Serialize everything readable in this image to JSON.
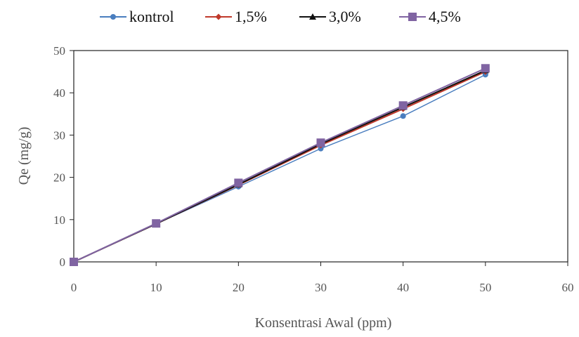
{
  "chart_data": {
    "type": "line",
    "xlabel": "Konsentrasi Awal (ppm)",
    "ylabel": "Qe (mg/g)",
    "xlim": [
      0,
      60
    ],
    "ylim": [
      0,
      50
    ],
    "xticks": [
      0,
      10,
      20,
      30,
      40,
      50,
      60
    ],
    "yticks": [
      0,
      10,
      20,
      30,
      40,
      50
    ],
    "grid": false,
    "legend_position": "top",
    "x": [
      0,
      10,
      20,
      30,
      40,
      50
    ],
    "series": [
      {
        "name": "kontrol",
        "values": [
          0,
          9.0,
          17.8,
          26.8,
          34.5,
          44.3
        ],
        "color": "#4a7ebf",
        "marker": "circle"
      },
      {
        "name": "1,5%",
        "values": [
          0,
          9.0,
          18.2,
          27.6,
          36.2,
          45.0
        ],
        "color": "#c0392b",
        "marker": "diamond"
      },
      {
        "name": "3,0%",
        "values": [
          0,
          9.0,
          18.3,
          27.9,
          36.6,
          45.3
        ],
        "color": "#111111",
        "marker": "triangle"
      },
      {
        "name": "4,5%",
        "values": [
          0,
          9.1,
          18.7,
          28.2,
          37.0,
          45.8
        ],
        "color": "#8064a2",
        "marker": "square"
      }
    ]
  }
}
